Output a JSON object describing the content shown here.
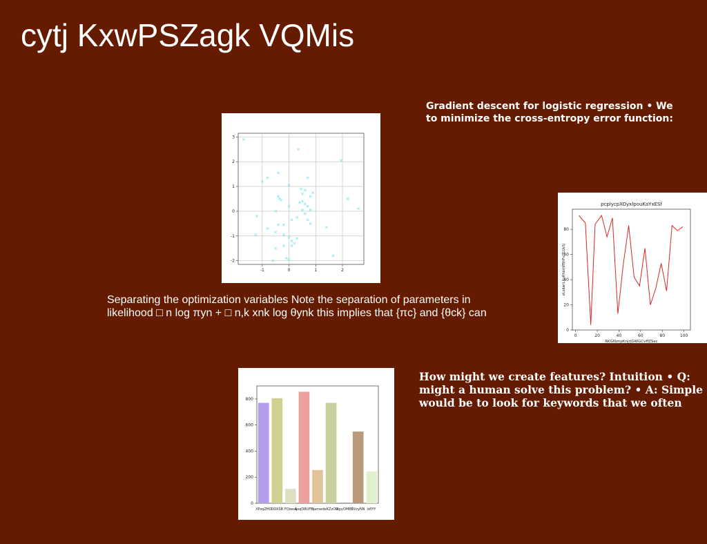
{
  "title": "cytj KxwPSZagk VQMis",
  "paragraphs": [
    {
      "lines": [
        "Gradient descent for logistic regression • We",
        "to minimize the cross-entropy error function:"
      ]
    },
    {
      "lines": [
        "Separating the optimization variables Note the separation of parameters in",
        "likelihood □ n log πyn + □ n,k xnk log θynk this implies that {πc} and {θck} can"
      ]
    },
    {
      "lines": [
        "How might we create features? Intuition • Q:",
        "might a human solve this problem? • A: Simple",
        "would be to look for keywords that we often"
      ]
    }
  ],
  "chart_data": [
    {
      "type": "scatter",
      "color": "#8ee9ef",
      "grid": true,
      "x": [
        -1.7,
        -1,
        -0.8,
        -0.4,
        0.35,
        1.95,
        0.7,
        0,
        -0.4,
        -0.3,
        -0.35,
        0.45,
        0.5,
        0.6,
        0.8,
        0.9,
        2.2,
        2.6,
        -0.5,
        0,
        0.4,
        0.5,
        0.6,
        0.7,
        0.5,
        0.6,
        0.8,
        -1.2,
        -0.8,
        -0.4,
        -0.2,
        0.1,
        0.3,
        0.7,
        0.8,
        1.4,
        -0.5,
        -0.2,
        0,
        0.1,
        0.3,
        -1.25,
        -0.5,
        -0.2,
        0.2,
        0.1,
        1.65,
        -0.1,
        0,
        -0.6
      ],
      "values": [
        2.9,
        1.2,
        1.35,
        1.55,
        2.5,
        2.05,
        1.35,
        1.05,
        0.6,
        0.45,
        0.5,
        0.9,
        0.7,
        0.85,
        0.6,
        0.75,
        0.5,
        0.1,
        0,
        0.2,
        0.35,
        0.4,
        0.3,
        0.2,
        0.05,
        -0.1,
        0.05,
        -0.2,
        -0.7,
        -0.55,
        -0.55,
        -0.35,
        -0.25,
        -0.35,
        -0.5,
        -0.65,
        -0.85,
        -0.95,
        -1.05,
        -1.2,
        -1.1,
        -0.95,
        -1.5,
        -1.4,
        -1.3,
        -1.4,
        -1.8,
        -1.9,
        -1.95,
        -2.0
      ],
      "xlim": [
        -1.9,
        2.8
      ],
      "xticks": [
        -1,
        0,
        1,
        2
      ],
      "ylim": [
        -2.15,
        3.15
      ],
      "yticks": [
        -2,
        -1,
        0,
        1,
        2,
        3
      ]
    },
    {
      "type": "line",
      "title": "pcplycpXOyxlpouKaYxESf",
      "x_label": "RKGNznpKnjrjGWGCvffZSec",
      "y_label": "eLsdwrLXuRhbthPBhFvlTLUsSj",
      "color": "#d62728",
      "x": [
        3,
        9,
        14,
        18,
        24,
        29,
        34,
        39,
        44,
        49,
        54,
        59,
        64,
        69,
        74,
        79,
        84,
        89,
        94,
        99
      ],
      "values": [
        91,
        85,
        4,
        84,
        91,
        74,
        89,
        13,
        52,
        83,
        42,
        35,
        65,
        20,
        33,
        53,
        31,
        83,
        79,
        82
      ],
      "xlim": [
        -3,
        106
      ],
      "xticks": [
        0,
        20,
        40,
        60,
        80,
        100
      ],
      "ylim": [
        0,
        96
      ],
      "yticks": [
        0,
        20,
        40,
        60,
        80
      ]
    },
    {
      "type": "bar",
      "categories": [
        "XPzqZHO",
        "DOXSB",
        "FQiwsq",
        "AoqDBUFD",
        "hjamen",
        "IeKZzOIX",
        "lkpyOMBE",
        "SVzyNN",
        "bfIYY"
      ],
      "values": [
        770,
        805,
        110,
        855,
        255,
        770,
        5,
        550,
        245
      ],
      "colors": [
        "#b49de9",
        "#d0d191",
        "#dfe0c2",
        "#e9a29a",
        "#e1c29c",
        "#cad09d",
        "#8fa0b3",
        "#b99b7b",
        "#e0f1d0"
      ],
      "ylim": [
        0,
        900
      ],
      "yticks": [
        0,
        200,
        400,
        600,
        800
      ]
    }
  ]
}
